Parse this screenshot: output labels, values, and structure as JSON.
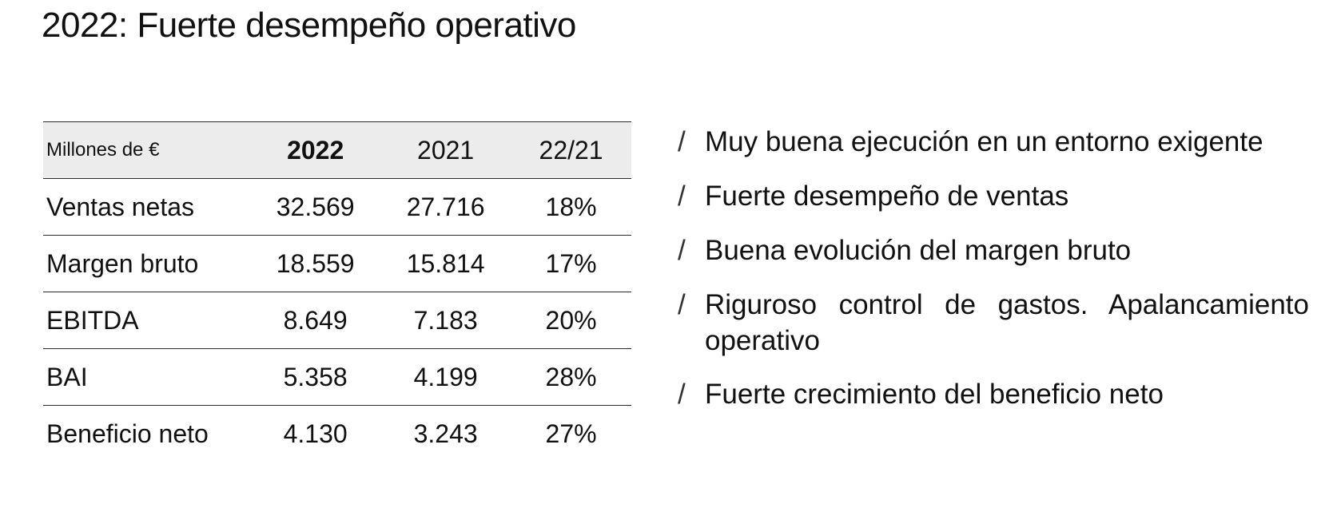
{
  "title": "2022: Fuerte desempeño operativo",
  "table": {
    "header": {
      "label": "Millones de €",
      "col1": "2022",
      "col2": "2021",
      "col3": "22/21"
    },
    "rows": [
      {
        "label": "Ventas netas",
        "v2022": "32.569",
        "v2021": "27.716",
        "var": "18%"
      },
      {
        "label": "Margen bruto",
        "v2022": "18.559",
        "v2021": "15.814",
        "var": "17%"
      },
      {
        "label": "EBITDA",
        "v2022": "8.649",
        "v2021": "7.183",
        "var": "20%"
      },
      {
        "label": "BAI",
        "v2022": "5.358",
        "v2021": "4.199",
        "var": "28%"
      },
      {
        "label": "Beneficio neto",
        "v2022": "4.130",
        "v2021": "3.243",
        "var": "27%"
      }
    ]
  },
  "bullet_marker": "/",
  "highlights": [
    "Muy buena ejecución en un entorno exigente",
    "Fuerte desempeño de ventas",
    "Buena evolución del margen bruto",
    "Riguroso control de gastos. Apalancamiento operativo",
    "Fuerte crecimiento del beneficio neto"
  ],
  "colors": {
    "text": "#111111",
    "header_background": "#ececec",
    "rule": "#2a2a2a",
    "background": "#ffffff"
  }
}
